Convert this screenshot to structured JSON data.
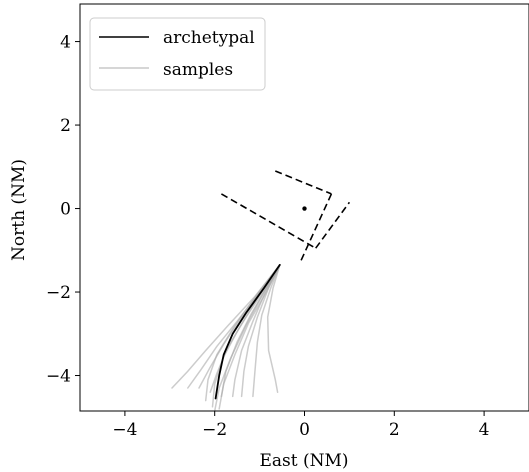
{
  "chart_data": {
    "type": "line",
    "title": "",
    "xlabel": "East (NM)",
    "ylabel": "North (NM)",
    "xlim": [
      -5.0,
      5.0
    ],
    "ylim": [
      -4.85,
      4.9
    ],
    "xticks": [
      -4,
      -2,
      0,
      2,
      4
    ],
    "yticks": [
      -4,
      -2,
      0,
      2,
      4
    ],
    "xtick_labels": [
      "−4",
      "−2",
      "0",
      "2",
      "4"
    ],
    "ytick_labels": [
      "−4",
      "−2",
      "0",
      "2",
      "4"
    ],
    "grid": false,
    "legend": {
      "position": "top-left",
      "entries": [
        {
          "label": "archetypal",
          "color": "#000000"
        },
        {
          "label": "samples",
          "color": "#c8c8c8"
        }
      ]
    },
    "series": [
      {
        "name": "archetypal",
        "color": "#000000",
        "style": "solid",
        "x": [
          -0.55,
          -0.9,
          -1.3,
          -1.6,
          -1.8,
          -1.9,
          -1.98
        ],
        "y": [
          -1.35,
          -1.9,
          -2.5,
          -3.0,
          -3.5,
          -4.0,
          -4.55
        ]
      },
      {
        "name": "samples",
        "color": "#aaaaaa",
        "style": "solid",
        "lines": [
          {
            "x": [
              -0.55,
              -1.1,
              -1.7,
              -2.2,
              -2.6,
              -2.95
            ],
            "y": [
              -1.35,
              -2.1,
              -2.8,
              -3.4,
              -3.9,
              -4.3
            ]
          },
          {
            "x": [
              -0.55,
              -1.0,
              -1.5,
              -1.95,
              -2.3,
              -2.6
            ],
            "y": [
              -1.35,
              -2.0,
              -2.7,
              -3.3,
              -3.85,
              -4.3
            ]
          },
          {
            "x": [
              -0.55,
              -0.95,
              -1.4,
              -1.8,
              -2.1,
              -2.35
            ],
            "y": [
              -1.35,
              -1.95,
              -2.6,
              -3.25,
              -3.8,
              -4.3
            ]
          },
          {
            "x": [
              -0.55,
              -1.05,
              -1.55,
              -1.95,
              -2.15,
              -2.2
            ],
            "y": [
              -1.35,
              -2.05,
              -2.8,
              -3.5,
              -4.1,
              -4.6
            ]
          },
          {
            "x": [
              -0.55,
              -0.9,
              -1.3,
              -1.7,
              -1.95,
              -2.1
            ],
            "y": [
              -1.35,
              -1.95,
              -2.6,
              -3.3,
              -3.95,
              -4.4
            ]
          },
          {
            "x": [
              -0.55,
              -0.85,
              -1.2,
              -1.5,
              -1.75,
              -1.85
            ],
            "y": [
              -1.35,
              -1.9,
              -2.55,
              -3.2,
              -3.9,
              -4.5
            ]
          },
          {
            "x": [
              -0.55,
              -0.85,
              -1.15,
              -1.4,
              -1.55,
              -1.6
            ],
            "y": [
              -1.35,
              -1.95,
              -2.7,
              -3.4,
              -4.1,
              -4.5
            ]
          },
          {
            "x": [
              -0.55,
              -0.8,
              -1.05,
              -1.25,
              -1.35,
              -1.4
            ],
            "y": [
              -1.35,
              -1.9,
              -2.6,
              -3.3,
              -3.9,
              -4.5
            ]
          },
          {
            "x": [
              -0.55,
              -0.85,
              -1.25,
              -1.55,
              -1.8,
              -1.9
            ],
            "y": [
              -1.35,
              -2.0,
              -2.75,
              -3.5,
              -4.2,
              -4.8
            ]
          },
          {
            "x": [
              -0.55,
              -0.9,
              -1.3,
              -1.65,
              -1.9,
              -2.0
            ],
            "y": [
              -1.35,
              -2.0,
              -2.8,
              -3.6,
              -4.3,
              -4.85
            ]
          },
          {
            "x": [
              -0.55,
              -0.75,
              -0.95,
              -1.05,
              -1.1,
              -1.15
            ],
            "y": [
              -1.35,
              -1.9,
              -2.55,
              -3.2,
              -3.85,
              -4.5
            ]
          },
          {
            "x": [
              -0.55,
              -0.7,
              -0.82,
              -0.8,
              -0.65,
              -0.6
            ],
            "y": [
              -1.35,
              -1.9,
              -2.6,
              -3.4,
              -4.1,
              -4.4
            ]
          },
          {
            "x": [
              -0.55,
              -1.0,
              -1.45,
              -1.8,
              -2.0,
              -2.05
            ],
            "y": [
              -1.35,
              -2.05,
              -2.85,
              -3.55,
              -4.2,
              -4.75
            ]
          }
        ]
      },
      {
        "name": "",
        "color": "#000000",
        "style": "dashed",
        "lines": [
          {
            "x": [
              -0.65,
              0.6
            ],
            "y": [
              0.9,
              0.35
            ]
          },
          {
            "x": [
              0.6,
              -0.1
            ],
            "y": [
              0.35,
              -1.3
            ]
          },
          {
            "x": [
              -1.85,
              0.25
            ],
            "y": [
              0.35,
              -0.95
            ]
          },
          {
            "x": [
              0.25,
              1.0
            ],
            "y": [
              -0.95,
              0.15
            ]
          }
        ]
      },
      {
        "name": "",
        "type": "scatter",
        "color": "#000000",
        "x": [
          0.0
        ],
        "y": [
          0.0
        ]
      }
    ]
  }
}
